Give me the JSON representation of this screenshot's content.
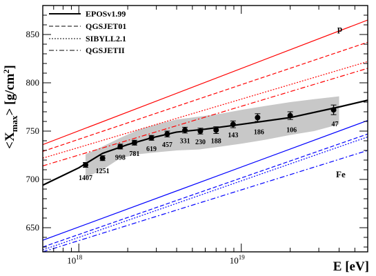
{
  "chart_data": {
    "type": "line",
    "xlabel": "E [eV]",
    "ylabel": "<X",
    "ylabel_sub": "max",
    "ylabel_tail": "> [g/cm",
    "ylabel_sup": "2",
    "ylabel_close": "]",
    "x_scale": "log",
    "xlim": [
      6e+17,
      6e+19
    ],
    "ylim": [
      625,
      880
    ],
    "x_ticks": [
      {
        "value": 1e+18,
        "base": "10",
        "exp": "18"
      },
      {
        "value": 1e+19,
        "base": "10",
        "exp": "19"
      }
    ],
    "y_ticks": [
      650,
      700,
      750,
      800,
      850
    ],
    "legend": {
      "position": "top-left",
      "entries": [
        "EPOSv1.99",
        "QGSJET01",
        "SIBYLL2.1",
        "QGSJETII"
      ]
    },
    "model_dashes": [
      "none",
      "6,3",
      "2,2",
      "7,3,2,3"
    ],
    "groups": [
      {
        "label": "p",
        "color": "#ff0000",
        "series": [
          {
            "x_range": [
              6e+17,
              6e+19
            ],
            "y_range": [
              736,
              865
            ]
          },
          {
            "x_range": [
              6e+17,
              6e+19
            ],
            "y_range": [
              729,
              842
            ]
          },
          {
            "x_range": [
              6e+17,
              6e+19
            ],
            "y_range": [
              722,
              822
            ]
          },
          {
            "x_range": [
              6e+17,
              6e+19
            ],
            "y_range": [
              714,
              815
            ]
          }
        ]
      },
      {
        "label": "Fe",
        "color": "#0000ff",
        "series": [
          {
            "x_range": [
              6e+17,
              6e+19
            ],
            "y_range": [
              637,
              761
            ]
          },
          {
            "x_range": [
              6e+17,
              6e+19
            ],
            "y_range": [
              630,
              747
            ]
          },
          {
            "x_range": [
              6e+17,
              6e+19
            ],
            "y_range": [
              627,
              744
            ]
          },
          {
            "x_range": [
              6e+17,
              6e+19
            ],
            "y_range": [
              625,
              730
            ]
          }
        ]
      }
    ],
    "data_fit": {
      "color": "#000000",
      "x": [
        6e+17,
        1e+18,
        1.4e+18,
        2e+18,
        2.8e+18,
        4e+18,
        6e+18,
        1e+19,
        2e+19,
        4e+19,
        6e+19
      ],
      "y": [
        694,
        712,
        727,
        736,
        743,
        749,
        752,
        757,
        764,
        775,
        782
      ]
    },
    "systematic_band": {
      "color": "#c8c8c8",
      "x": [
        1.1e+18,
        1.4e+18,
        1.8e+18,
        2.3e+18,
        3e+18,
        4e+18,
        5.5e+18,
        7.5e+18,
        1e+19,
        1.4e+19,
        2e+19,
        2.8e+19,
        4e+19
      ],
      "upper": [
        726,
        734,
        743,
        751,
        757,
        762,
        765,
        768,
        772,
        776,
        780,
        783,
        786
      ],
      "lower": [
        702,
        710,
        722,
        726,
        728,
        730,
        731,
        734,
        737,
        741,
        746,
        750,
        757
      ]
    },
    "points": [
      {
        "x": 1.1e+18,
        "y": 715,
        "err": 2.5,
        "n": "1407"
      },
      {
        "x": 1.4e+18,
        "y": 722,
        "err": 2.5,
        "n": "1251"
      },
      {
        "x": 1.8e+18,
        "y": 734,
        "err": 2.5,
        "n": "998"
      },
      {
        "x": 2.2e+18,
        "y": 738,
        "err": 2.5,
        "n": "781"
      },
      {
        "x": 2.8e+18,
        "y": 743,
        "err": 2.5,
        "n": "619"
      },
      {
        "x": 3.5e+18,
        "y": 747,
        "err": 3,
        "n": "457"
      },
      {
        "x": 4.5e+18,
        "y": 751,
        "err": 3,
        "n": "331"
      },
      {
        "x": 5.6e+18,
        "y": 750,
        "err": 3,
        "n": "230"
      },
      {
        "x": 7e+18,
        "y": 751,
        "err": 3.5,
        "n": "188"
      },
      {
        "x": 8.9e+18,
        "y": 757,
        "err": 3.5,
        "n": "143"
      },
      {
        "x": 1.26e+19,
        "y": 764,
        "err": 4,
        "n": "186"
      },
      {
        "x": 2e+19,
        "y": 766,
        "err": 4,
        "n": "106"
      },
      {
        "x": 3.7e+19,
        "y": 772,
        "err": 5,
        "n": "47"
      }
    ]
  }
}
